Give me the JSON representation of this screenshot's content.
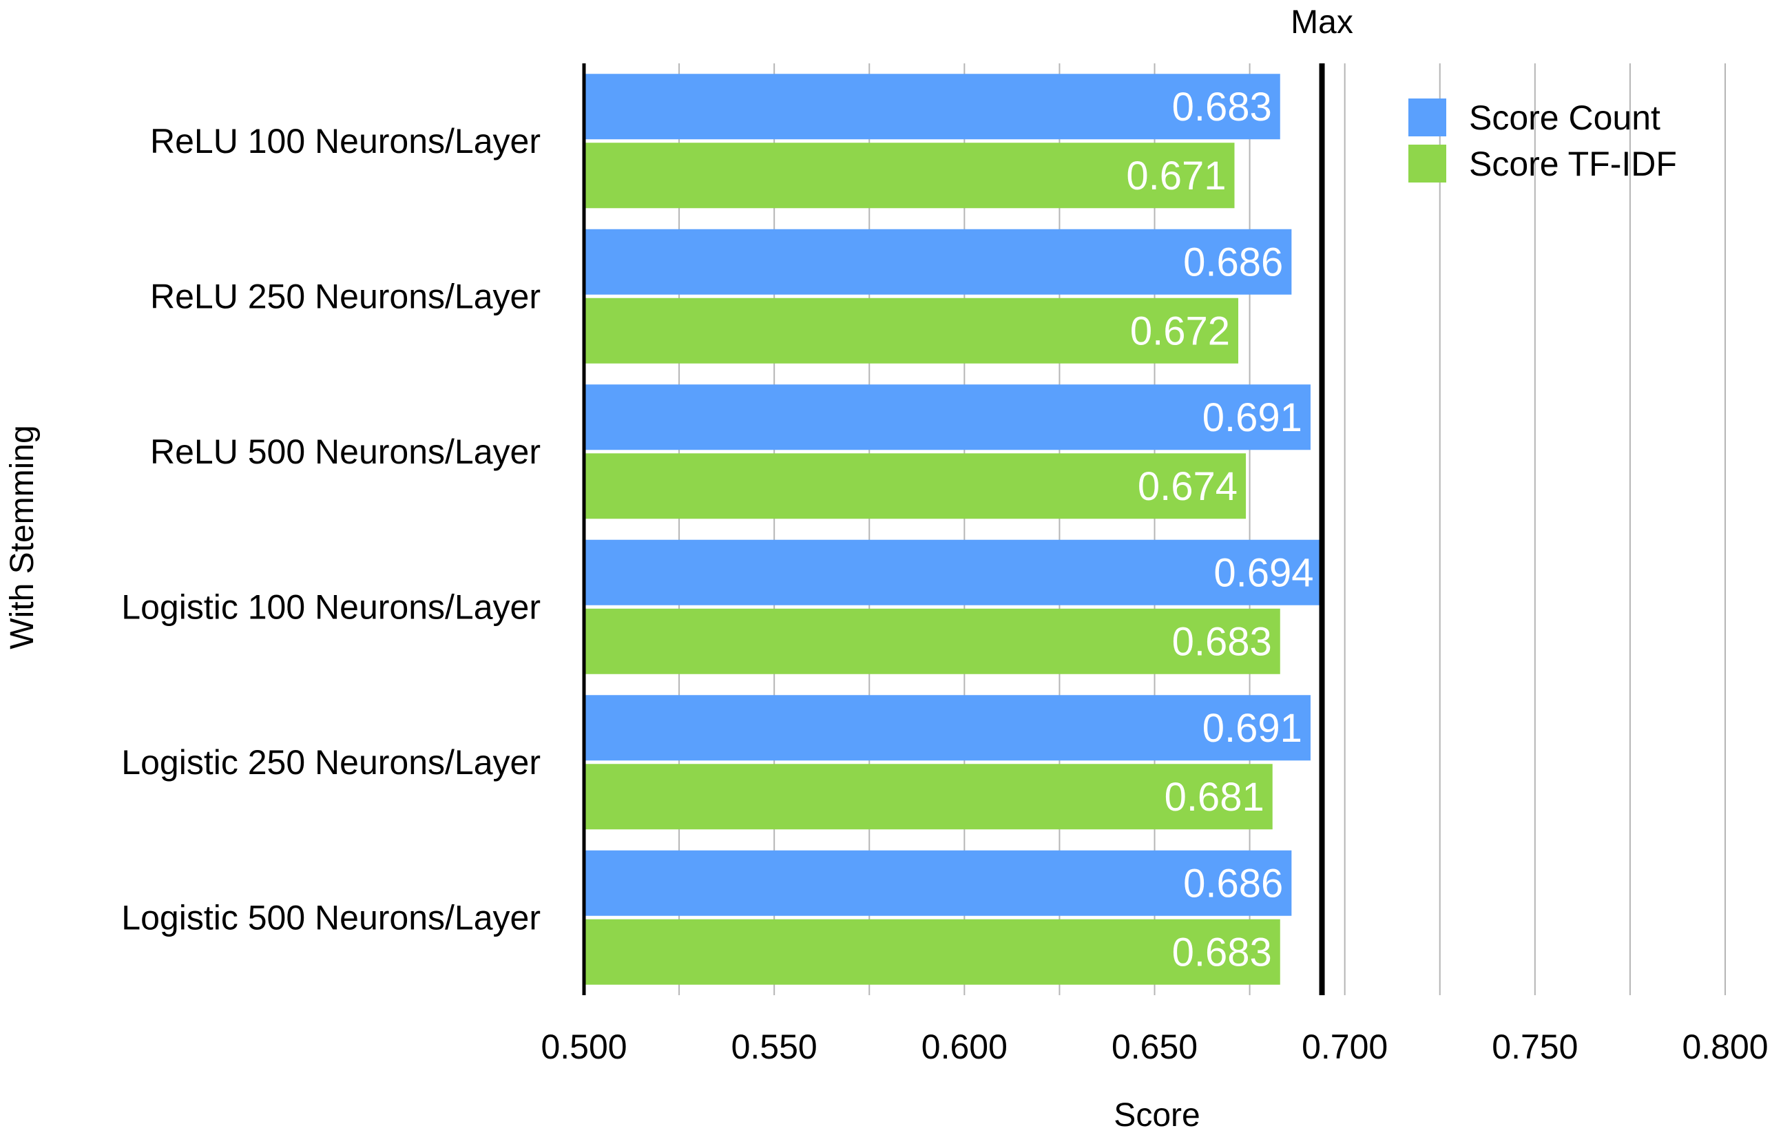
{
  "chart_data": {
    "type": "bar",
    "orientation": "horizontal",
    "title": "",
    "xlabel": "Score",
    "ylabel": "With Stemming",
    "xlim": [
      0.5,
      0.8
    ],
    "x_ticks": [
      "0.500",
      "0.550",
      "0.600",
      "0.650",
      "0.700",
      "0.750",
      "0.800"
    ],
    "categories": [
      "ReLU 100 Neurons/Layer",
      "ReLU 250 Neurons/Layer",
      "ReLU 500 Neurons/Layer",
      "Logistic 100 Neurons/Layer",
      "Logistic 250 Neurons/Layer",
      "Logistic 500 Neurons/Layer"
    ],
    "series": [
      {
        "name": "Score Count",
        "color": "#5AA0FD",
        "values": [
          0.683,
          0.686,
          0.691,
          0.694,
          0.691,
          0.686
        ]
      },
      {
        "name": "Score TF-IDF",
        "color": "#8FD64B",
        "values": [
          0.671,
          0.672,
          0.674,
          0.683,
          0.681,
          0.683
        ]
      }
    ],
    "reference_line": {
      "label": "Max",
      "value": 0.694
    },
    "grid": true,
    "legend_position": "top-right",
    "data_labels": true
  }
}
